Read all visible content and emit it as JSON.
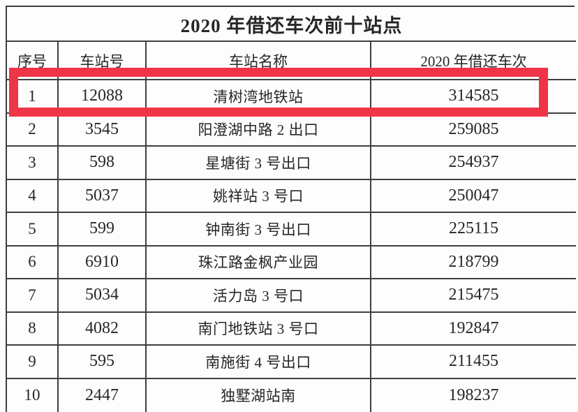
{
  "chart_data": {
    "type": "table",
    "title": "2020 年借还车次前十站点",
    "columns": [
      "序号",
      "车站号",
      "车站名称",
      "2020 年借还车次"
    ],
    "rows": [
      [
        "1",
        "12088",
        "清树湾地铁站",
        "314585"
      ],
      [
        "2",
        "3545",
        "阳澄湖中路 2 出口",
        "259085"
      ],
      [
        "3",
        "598",
        "星塘街 3 号出口",
        "254937"
      ],
      [
        "4",
        "5037",
        "姚祥站 3 号口",
        "250047"
      ],
      [
        "5",
        "599",
        "钟南街 3 号出口",
        "225115"
      ],
      [
        "6",
        "6910",
        "珠江路金枫产业园",
        "218799"
      ],
      [
        "7",
        "5034",
        "活力岛 3 号口",
        "215475"
      ],
      [
        "8",
        "4082",
        "南门地铁站 3 号口",
        "192847"
      ],
      [
        "9",
        "595",
        "南施街 4 号出口",
        "211455"
      ],
      [
        "10",
        "2447",
        "独墅湖站南",
        "198237"
      ]
    ],
    "highlighted_row_index": 0,
    "layout": {
      "highlight_color": "#ef3448",
      "border_color": "#3f3f3f",
      "grid": "on",
      "legend": "none"
    }
  }
}
